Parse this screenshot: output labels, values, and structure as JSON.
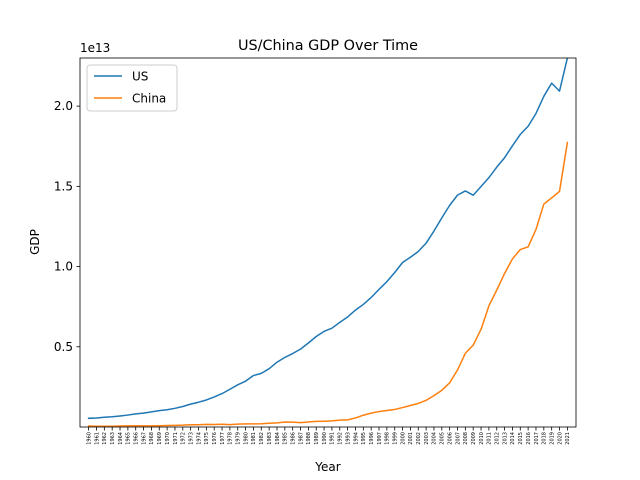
{
  "chart_data": {
    "type": "line",
    "title": "US/China GDP Over Time",
    "xlabel": "Year",
    "ylabel": "GDP",
    "y_offset_label": "1e13",
    "y_scale_factor": 10000000000000.0,
    "xlim": [
      1958.9,
      2022.1
    ],
    "ylim": [
      0.0,
      23000000000000.0
    ],
    "y_ticks": [
      5000000000000.0,
      10000000000000.0,
      15000000000000.0,
      20000000000000.0
    ],
    "y_tick_labels": [
      "0.5",
      "1.0",
      "1.5",
      "2.0"
    ],
    "grid": false,
    "legend_position": "top-left",
    "x": [
      1960,
      1961,
      1962,
      1963,
      1964,
      1965,
      1966,
      1967,
      1968,
      1969,
      1970,
      1971,
      1972,
      1973,
      1974,
      1975,
      1976,
      1977,
      1978,
      1979,
      1980,
      1981,
      1982,
      1983,
      1984,
      1985,
      1986,
      1987,
      1988,
      1989,
      1990,
      1991,
      1992,
      1993,
      1994,
      1995,
      1996,
      1997,
      1998,
      1999,
      2000,
      2001,
      2002,
      2003,
      2004,
      2005,
      2006,
      2007,
      2008,
      2009,
      2010,
      2011,
      2012,
      2013,
      2014,
      2015,
      2016,
      2017,
      2018,
      2019,
      2020,
      2021
    ],
    "x_tick_labels": [
      "1960",
      "1961",
      "1962",
      "1963",
      "1964",
      "1965",
      "1966",
      "1967",
      "1968",
      "1969",
      "1970",
      "1971",
      "1972",
      "1973",
      "1974",
      "1975",
      "1976",
      "1977",
      "1978",
      "1979",
      "1980",
      "1981",
      "1982",
      "1983",
      "1984",
      "1985",
      "1986",
      "1987",
      "1988",
      "1989",
      "1990",
      "1991",
      "1992",
      "1993",
      "1994",
      "1995",
      "1996",
      "1997",
      "1998",
      "1999",
      "2000",
      "2001",
      "2002",
      "2003",
      "2004",
      "2005",
      "2006",
      "2007",
      "2008",
      "2009",
      "2010",
      "2011",
      "2012",
      "2013",
      "2014",
      "2015",
      "2016",
      "2017",
      "2018",
      "2019",
      "2020",
      "2021"
    ],
    "series": [
      {
        "name": "US",
        "color": "#1f77b4",
        "values": [
          543000000000.0,
          563000000000.0,
          605000000000.0,
          639000000000.0,
          686000000000.0,
          744000000000.0,
          815000000000.0,
          862000000000.0,
          942000000000.0,
          1019500000000.0,
          1073400000000.0,
          1164700000000.0,
          1279100000000.0,
          1425400000000.0,
          1545200000000.0,
          1684900000000.0,
          1873800000000.0,
          2081300000000.0,
          2351500000000.0,
          2627600000000.0,
          2857300000000.0,
          3207400000000.0,
          3343300000000.0,
          3634400000000.0,
          4037100000000.0,
          4338900000000.0,
          4579600000000.0,
          4855200000000.0,
          5236200000000.0,
          5641700000000.0,
          5963100000000.0,
          6158500000000.0,
          6520300000000.0,
          6858800000000.0,
          7287300000000.0,
          7639700000000.0,
          8073200000000.0,
          8577900000000.0,
          9062900000000.0,
          9631100000000.0,
          10251900000000.0,
          10581900000000.0,
          10936400000000.0,
          11458100000000.0,
          12213700000000.0,
          13036900000000.0,
          13814900000000.0,
          14451800000000.0,
          14712800000000.0,
          14448900000000.0,
          14992100000000.0,
          15542600000000.0,
          16197000000000.0,
          16784900000000.0,
          17527200000000.0,
          18238300000000.0,
          18745100000000.0,
          19543000000000.0,
          20611800000000.0,
          21433200000000.0,
          20936600000000.0,
          22996100000000.0
        ]
      },
      {
        "name": "China",
        "color": "#ff7f0e",
        "values": [
          59700000000.0,
          50000000000.0,
          47200000000.0,
          50700000000.0,
          59700000000.0,
          70400000000.0,
          76700000000.0,
          72900000000.0,
          70700000000.0,
          79700000000.0,
          92600000000.0,
          99800000000.0,
          113700000000.0,
          138500000000.0,
          144200000000.0,
          163400000000.0,
          153900000000.0,
          174900000000.0,
          149500000000.0,
          178300000000.0,
          191100000000.0,
          195800000000.0,
          205100000000.0,
          230300000000.0,
          259900000000.0,
          309400000000.0,
          300800000000.0,
          272900000000.0,
          312300000000.0,
          347700000000.0,
          360900000000.0,
          383400000000.0,
          426900000000.0,
          444700000000.0,
          564300000000.0,
          734000000000.0,
          863800000000.0,
          961500000000.0,
          1029000000000.0,
          1094000000000.0,
          1211300000000.0,
          1339300000000.0,
          1470600000000.0,
          1660300000000.0,
          1955300000000.0,
          2286000000000.0,
          2752100000000.0,
          3550300000000.0,
          4594400000000.0,
          5101700000000.0,
          6087200000000.0,
          7551500000000.0,
          8532300000000.0,
          9570400000000.0,
          10475700000000.0,
          11061700000000.0,
          11233300000000.0,
          12310400000000.0,
          13894800000000.0,
          14279900000000.0,
          14687700000000.0,
          17734100000000.0
        ]
      }
    ]
  }
}
